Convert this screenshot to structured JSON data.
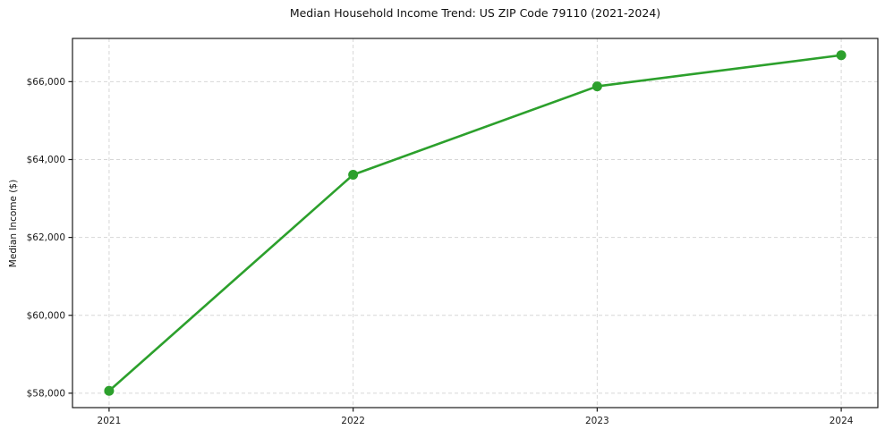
{
  "chart_data": {
    "type": "line",
    "title": "Median Household Income Trend: US ZIP Code 79110 (2021-2024)",
    "ylabel": "Median Income ($)",
    "xlabel": "",
    "x": [
      2021,
      2022,
      2023,
      2024
    ],
    "x_tick_labels": [
      "2021",
      "2022",
      "2023",
      "2024"
    ],
    "values": [
      58060,
      63610,
      65880,
      66680
    ],
    "y_ticks": [
      {
        "value": 58000,
        "label": "$58,000"
      },
      {
        "value": 60000,
        "label": "$60,000"
      },
      {
        "value": 62000,
        "label": "$62,000"
      },
      {
        "value": 64000,
        "label": "$64,000"
      },
      {
        "value": 66000,
        "label": "$66,000"
      }
    ],
    "ylim": [
      57630,
      67110
    ],
    "xlim": [
      2020.85,
      2024.15
    ],
    "grid": true,
    "grid_style": "dashed",
    "legend": false,
    "line_color": "#2ca02c",
    "marker": "circle",
    "grid_color": "#d7d7d7",
    "axis_color": "#1a1a1a",
    "background": "#ffffff"
  }
}
